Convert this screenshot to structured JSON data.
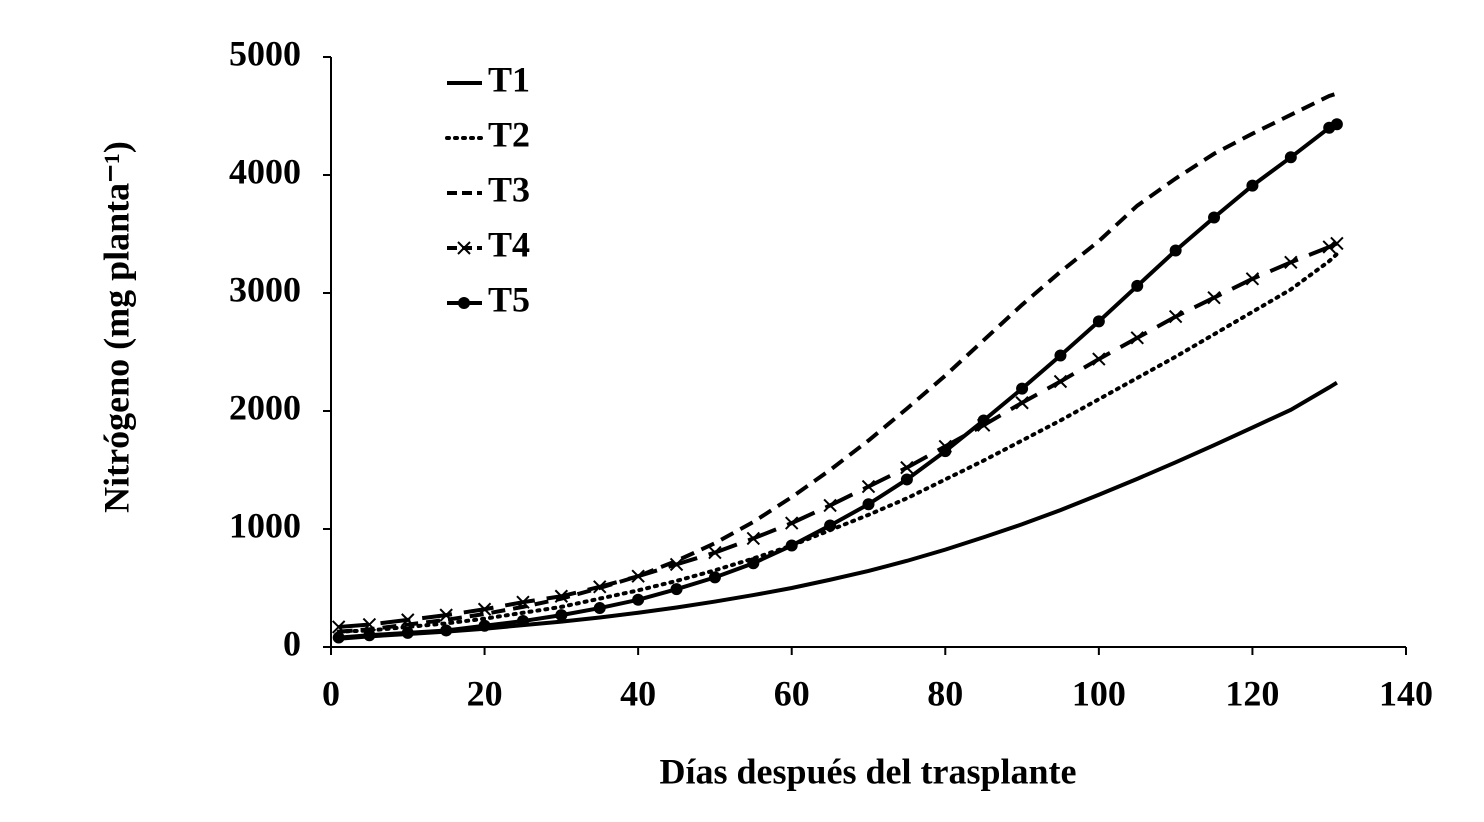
{
  "chart_data": {
    "type": "line",
    "xlabel": "Días después del trasplante",
    "ylabel": "Nitrógeno (mg planta⁻¹)",
    "x": [
      1,
      5,
      10,
      15,
      20,
      25,
      30,
      35,
      40,
      45,
      50,
      55,
      60,
      65,
      70,
      75,
      80,
      85,
      90,
      95,
      100,
      105,
      110,
      115,
      120,
      125,
      130,
      131
    ],
    "series": [
      {
        "name": "T1",
        "color": "#000000",
        "line_style": "solid",
        "values": [
          70,
          90,
          110,
          130,
          155,
          185,
          215,
          250,
          290,
          335,
          385,
          440,
          500,
          570,
          645,
          730,
          825,
          930,
          1040,
          1160,
          1290,
          1425,
          1565,
          1710,
          1860,
          2010,
          2200,
          2240
        ]
      },
      {
        "name": "T2",
        "color": "#000000",
        "line_style": "dotted",
        "values": [
          130,
          140,
          170,
          200,
          240,
          290,
          340,
          410,
          480,
          560,
          650,
          750,
          860,
          990,
          1120,
          1260,
          1420,
          1580,
          1750,
          1920,
          2100,
          2280,
          2460,
          2650,
          2840,
          3030,
          3270,
          3330
        ]
      },
      {
        "name": "T3",
        "color": "#000000",
        "line_style": "dashed",
        "values": [
          130,
          150,
          190,
          230,
          280,
          340,
          410,
          500,
          600,
          730,
          880,
          1060,
          1270,
          1500,
          1750,
          2020,
          2300,
          2600,
          2900,
          3180,
          3440,
          3740,
          3970,
          4180,
          4350,
          4510,
          4670,
          4690
        ]
      },
      {
        "name": "T4",
        "color": "#000000",
        "line_style": "long-dash",
        "marker": "x",
        "values": [
          170,
          190,
          230,
          270,
          320,
          380,
          430,
          510,
          600,
          700,
          800,
          920,
          1050,
          1200,
          1360,
          1520,
          1700,
          1880,
          2070,
          2250,
          2440,
          2620,
          2800,
          2960,
          3120,
          3260,
          3390,
          3420
        ]
      },
      {
        "name": "T5",
        "color": "#000000",
        "line_style": "solid",
        "marker": "circle",
        "values": [
          80,
          100,
          120,
          140,
          180,
          220,
          270,
          330,
          400,
          490,
          590,
          710,
          860,
          1030,
          1210,
          1420,
          1660,
          1920,
          2190,
          2470,
          2760,
          3060,
          3360,
          3640,
          3910,
          4150,
          4400,
          4430
        ]
      }
    ],
    "xlim": [
      0,
      140
    ],
    "xticks": [
      0,
      20,
      40,
      60,
      80,
      100,
      120,
      140
    ],
    "ylim": [
      0,
      5000
    ],
    "yticks": [
      0,
      1000,
      2000,
      3000,
      4000,
      5000
    ],
    "grid": false,
    "legend": "upper left"
  }
}
